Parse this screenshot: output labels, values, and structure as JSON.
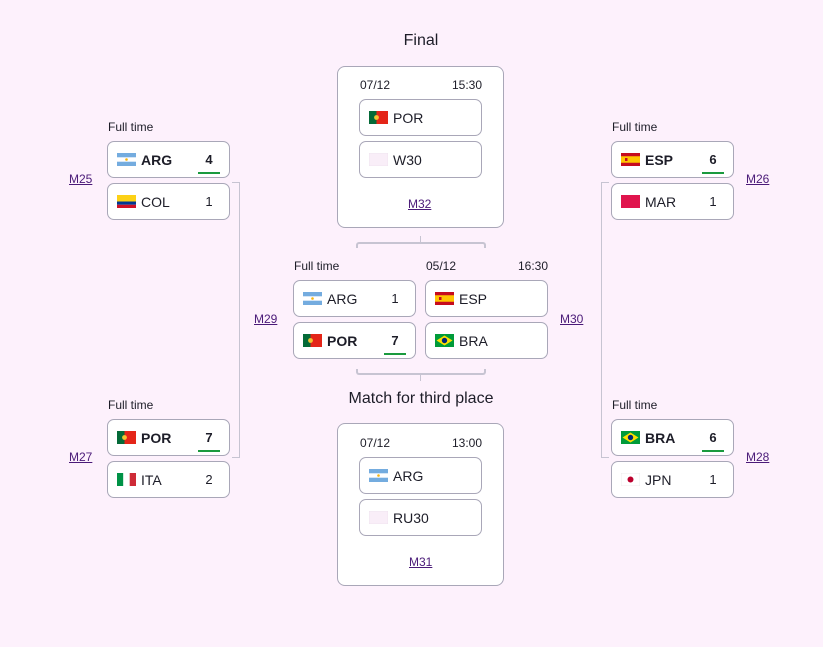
{
  "left": {
    "top": {
      "status": "Full time",
      "match": "M25",
      "teams": [
        {
          "name": "ARG",
          "flag": "arg",
          "score": "4",
          "winner": true
        },
        {
          "name": "COL",
          "flag": "col",
          "score": "1",
          "winner": false
        }
      ]
    },
    "bottom": {
      "status": "Full time",
      "match": "M27",
      "teams": [
        {
          "name": "POR",
          "flag": "por",
          "score": "7",
          "winner": true
        },
        {
          "name": "ITA",
          "flag": "ita",
          "score": "2",
          "winner": false
        }
      ]
    },
    "semi_link": "M29"
  },
  "right": {
    "top": {
      "status": "Full time",
      "match": "M26",
      "teams": [
        {
          "name": "ESP",
          "flag": "esp",
          "score": "6",
          "winner": true
        },
        {
          "name": "MAR",
          "flag": "mar",
          "score": "1",
          "winner": false
        }
      ]
    },
    "bottom": {
      "status": "Full time",
      "match": "M28",
      "teams": [
        {
          "name": "BRA",
          "flag": "bra",
          "score": "6",
          "winner": true
        },
        {
          "name": "JPN",
          "flag": "jpn",
          "score": "1",
          "winner": false
        }
      ]
    },
    "semi_link": "M30"
  },
  "semis": {
    "left": {
      "status": "Full time",
      "teams": [
        {
          "name": "ARG",
          "flag": "arg",
          "score": "1",
          "winner": false
        },
        {
          "name": "POR",
          "flag": "por",
          "score": "7",
          "winner": true
        }
      ]
    },
    "right": {
      "date": "05/12",
      "time": "16:30",
      "teams": [
        {
          "name": "ESP",
          "flag": "esp"
        },
        {
          "name": "BRA",
          "flag": "bra"
        }
      ]
    }
  },
  "final": {
    "title": "Final",
    "date": "07/12",
    "time": "15:30",
    "teams": [
      {
        "name": "POR",
        "flag": "por"
      },
      {
        "name": "W30",
        "flag": "blank"
      }
    ],
    "match": "M32"
  },
  "third": {
    "title": "Match for third place",
    "date": "07/12",
    "time": "13:00",
    "teams": [
      {
        "name": "ARG",
        "flag": "arg"
      },
      {
        "name": "RU30",
        "flag": "blank"
      }
    ],
    "match": "M31"
  },
  "colors": {
    "background": "#fdf1fc",
    "winner_underline": "#1a9a3e",
    "link": "#4a1a78"
  }
}
